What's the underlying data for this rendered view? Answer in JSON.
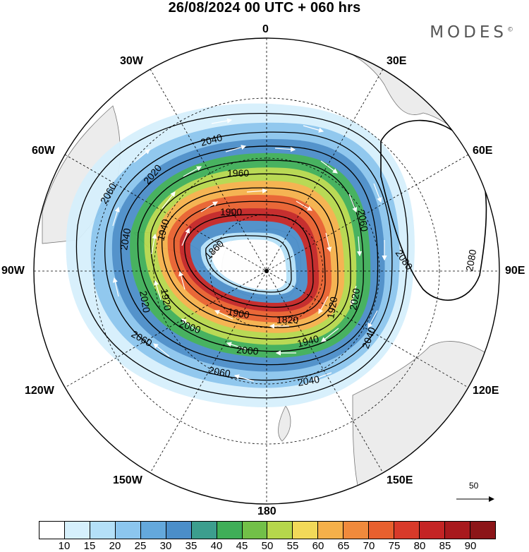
{
  "title": "26/08/2024  00 UTC  + 060 hrs",
  "brand": "MODES",
  "brand_mark": "©",
  "longitude_labels": {
    "top": "0",
    "bottom": "180",
    "left": "90W",
    "right": "90E",
    "w30": "30W",
    "e30": "30E",
    "w60": "60W",
    "e60": "60E",
    "w120": "120W",
    "e120": "120E",
    "w150": "150W",
    "e150": "150E"
  },
  "reference_vector": {
    "label": "50"
  },
  "contour_labels": [
    "2040",
    "2060",
    "1960",
    "2020",
    "1900",
    "1860",
    "1940",
    "2040",
    "2020",
    "1920",
    "1820",
    "1920",
    "1900",
    "2000",
    "2060",
    "2060",
    "2000",
    "1940",
    "2040",
    "2020",
    "2040",
    "2060",
    "2080",
    "2080"
  ],
  "colorbar": {
    "colors": [
      "#ffffff",
      "#d6f0fc",
      "#b4e0f8",
      "#8cc6ee",
      "#64a8dc",
      "#4b8ec9",
      "#3c9e8e",
      "#3fae58",
      "#72c048",
      "#b6d74c",
      "#f2d959",
      "#f5b04a",
      "#f08a3c",
      "#e8602e",
      "#d83a2a",
      "#c42424",
      "#a8191d",
      "#8c1518"
    ],
    "labels": [
      "10",
      "15",
      "20",
      "25",
      "30",
      "35",
      "40",
      "45",
      "50",
      "55",
      "60",
      "65",
      "70",
      "75",
      "80",
      "85",
      "90"
    ]
  },
  "colors": {
    "land": "#ececec",
    "coast": "#777777",
    "contour": "#000000",
    "graticule": "#000000"
  }
}
